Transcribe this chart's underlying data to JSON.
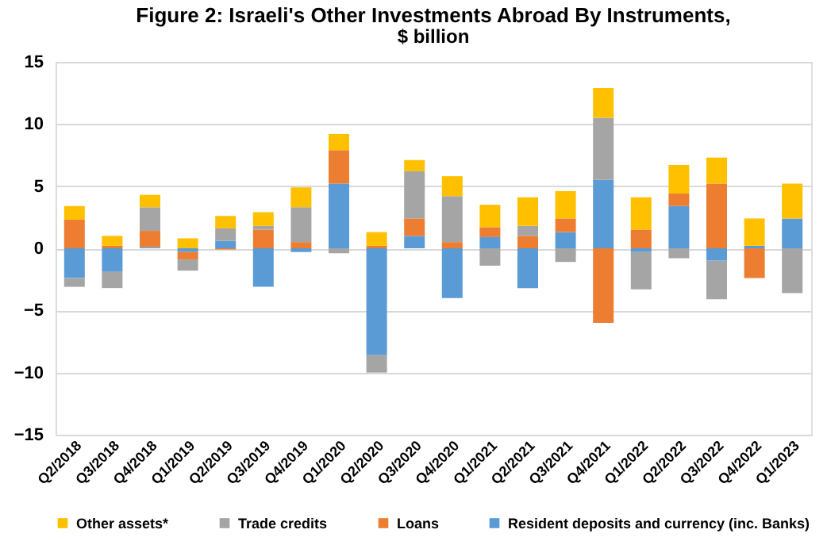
{
  "chart_data": {
    "type": "bar",
    "stacked": true,
    "title": "Figure 2: Israeli's Other Investments Abroad By Instruments,",
    "subtitle": "$ billion",
    "categories": [
      "Q2/2018",
      "Q3/2018",
      "Q4/2018",
      "Q1/2019",
      "Q2/2019",
      "Q3/2019",
      "Q4/2019",
      "Q1/2020",
      "Q2/2020",
      "Q3/2020",
      "Q4/2020",
      "Q1/2021",
      "Q2/2021",
      "Q3/2021",
      "Q4/2021",
      "Q1/2022",
      "Q2/2022",
      "Q3/2022",
      "Q4/2022",
      "Q1/2023"
    ],
    "series": [
      {
        "name": "Resident deposits and currency (inc. Banks)",
        "color": "#5b9bd5",
        "values": [
          -2.4,
          -1.9,
          0.1,
          -0.3,
          0.6,
          -3.1,
          -0.3,
          5.2,
          -8.6,
          1.0,
          -4.0,
          0.9,
          -3.2,
          1.3,
          5.5,
          -0.3,
          3.4,
          -1.0,
          0.2,
          2.4
        ]
      },
      {
        "name": "Loans",
        "color": "#ed7d31",
        "values": [
          2.3,
          0.2,
          1.3,
          -0.6,
          -0.1,
          1.5,
          0.5,
          2.7,
          0.2,
          1.4,
          0.5,
          0.8,
          1.0,
          1.1,
          -6.0,
          1.5,
          1.0,
          5.2,
          -2.4,
          0
        ]
      },
      {
        "name": "Trade credits",
        "color": "#a5a5a5",
        "values": [
          -0.7,
          -1.3,
          1.9,
          -0.9,
          1.0,
          0.3,
          2.8,
          -0.4,
          -1.4,
          3.8,
          3.7,
          -1.4,
          0.8,
          -1.1,
          5.0,
          -3.0,
          -0.8,
          -3.1,
          0,
          -3.6
        ]
      },
      {
        "name": "Other assets*",
        "color": "#ffc000",
        "values": [
          1.1,
          0.8,
          1.0,
          0.8,
          1.0,
          1.1,
          1.6,
          1.3,
          1.1,
          0.9,
          1.6,
          1.8,
          2.3,
          2.2,
          2.4,
          2.6,
          2.3,
          2.1,
          2.2,
          2.8
        ]
      }
    ],
    "ylim": [
      -15,
      15
    ],
    "yticks": [
      -15,
      -10,
      -5,
      0,
      5,
      10,
      15
    ],
    "grid": "y",
    "legend": "bottom"
  }
}
